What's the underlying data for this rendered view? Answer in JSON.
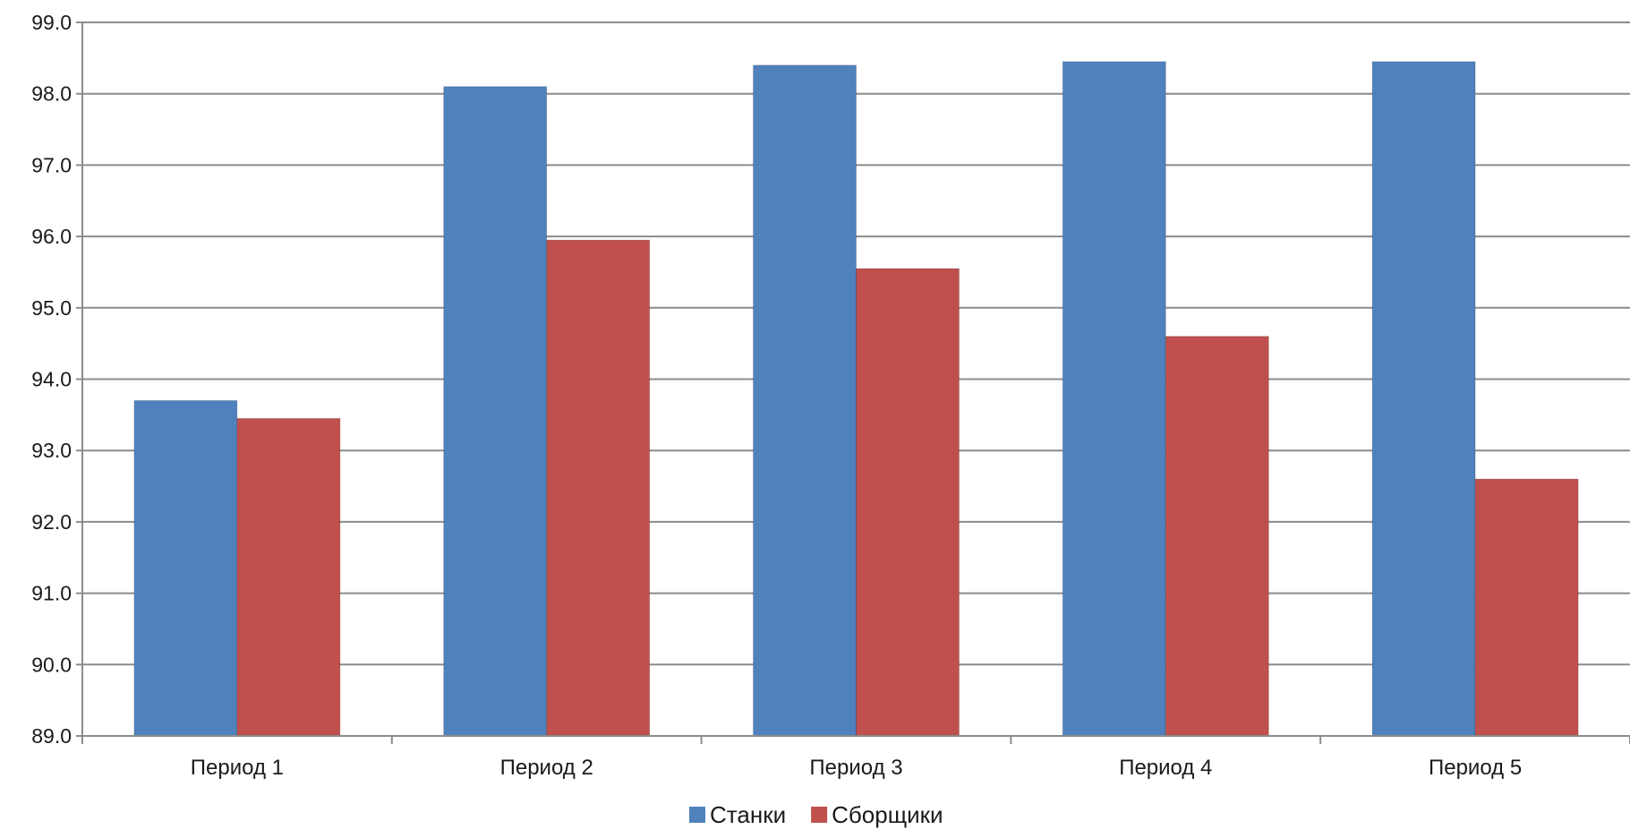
{
  "chart_data": {
    "type": "bar",
    "categories": [
      "Период 1",
      "Период 2",
      "Период 3",
      "Период 4",
      "Период 5"
    ],
    "series": [
      {
        "name": "Станки",
        "color": "#4f81bd",
        "values": [
          93.7,
          98.1,
          98.4,
          98.45,
          98.45
        ]
      },
      {
        "name": "Сборщики",
        "color": "#c0504d",
        "values": [
          93.45,
          95.95,
          95.55,
          94.6,
          92.6
        ]
      }
    ],
    "ylim": [
      89.0,
      99.0
    ],
    "yticks": [
      "89.0",
      "90.0",
      "91.0",
      "92.0",
      "93.0",
      "94.0",
      "95.0",
      "96.0",
      "97.0",
      "98.0",
      "99.0"
    ],
    "grid": true,
    "legend_position": "bottom",
    "title": "",
    "xlabel": "",
    "ylabel": ""
  }
}
